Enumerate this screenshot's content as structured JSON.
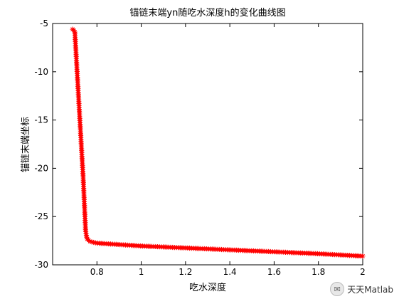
{
  "chart_data": {
    "type": "scatter",
    "title": "锚链末端yn随吃水深度h的变化曲线图",
    "xlabel": "吃水深度",
    "ylabel": "锚链末端坐标",
    "xlim": [
      0.6,
      2.0
    ],
    "ylim": [
      -30,
      -5
    ],
    "xticks": [
      "0.8",
      "1",
      "1.2",
      "1.4",
      "1.6",
      "1.8",
      "2"
    ],
    "yticks": [
      "-5",
      "-10",
      "-15",
      "-20",
      "-25",
      "-30"
    ],
    "marker": "*",
    "color": "#ff0000",
    "grid": false,
    "series": [
      {
        "name": "",
        "curve_points": [
          {
            "x": 0.69,
            "y": -5.6
          },
          {
            "x": 0.7,
            "y": -5.8
          },
          {
            "x": 0.703,
            "y": -7.0
          },
          {
            "x": 0.708,
            "y": -9.0
          },
          {
            "x": 0.713,
            "y": -11.0
          },
          {
            "x": 0.718,
            "y": -13.0
          },
          {
            "x": 0.723,
            "y": -15.0
          },
          {
            "x": 0.728,
            "y": -17.0
          },
          {
            "x": 0.733,
            "y": -19.0
          },
          {
            "x": 0.738,
            "y": -21.0
          },
          {
            "x": 0.742,
            "y": -23.0
          },
          {
            "x": 0.746,
            "y": -25.0
          },
          {
            "x": 0.749,
            "y": -26.5
          },
          {
            "x": 0.755,
            "y": -27.3
          },
          {
            "x": 0.77,
            "y": -27.6
          },
          {
            "x": 0.8,
            "y": -27.75
          },
          {
            "x": 0.9,
            "y": -27.9
          },
          {
            "x": 1.0,
            "y": -28.05
          },
          {
            "x": 1.2,
            "y": -28.25
          },
          {
            "x": 1.4,
            "y": -28.45
          },
          {
            "x": 1.6,
            "y": -28.65
          },
          {
            "x": 1.8,
            "y": -28.85
          },
          {
            "x": 2.0,
            "y": -29.1
          }
        ],
        "point_count": 260
      }
    ]
  },
  "watermark": {
    "text": "天天Matlab"
  }
}
